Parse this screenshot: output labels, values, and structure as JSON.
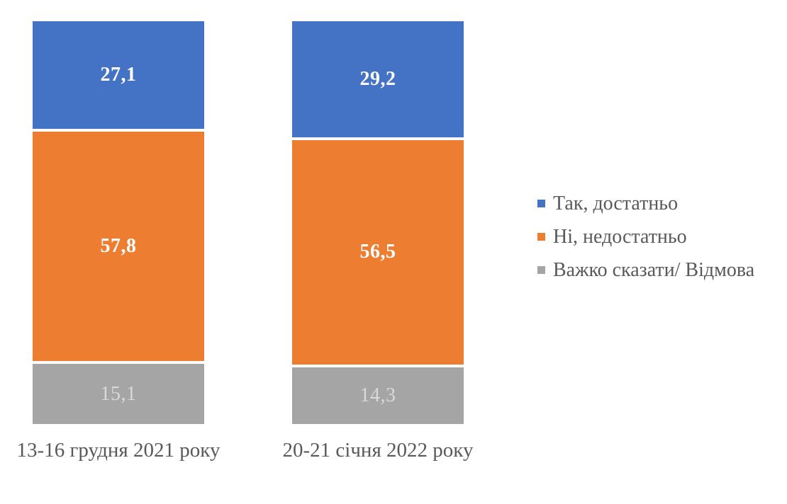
{
  "chart_data": {
    "type": "bar",
    "variant": "stacked-100-percent-column",
    "orientation": "vertical",
    "categories": [
      "13-16 грудня 2021 року",
      "20-21 січня 2022 року"
    ],
    "series": [
      {
        "name": "Так, достатньо",
        "values": [
          27.1,
          29.2
        ],
        "labels": [
          "27,1",
          "29,2"
        ],
        "color": "#4472C4",
        "label_color": "#FFFFFF"
      },
      {
        "name": "Ні, недостатньо",
        "values": [
          57.8,
          56.5
        ],
        "labels": [
          "57,8",
          "56,5"
        ],
        "color": "#ED7D31",
        "label_color": "#FFFFFF"
      },
      {
        "name": "Важко сказати/ Відмова",
        "values": [
          15.1,
          14.3
        ],
        "labels": [
          "15,1",
          "14,3"
        ],
        "color": "#A5A5A5",
        "label_color": "#D9D9D9"
      }
    ],
    "ylim": [
      0,
      100
    ],
    "grid": false,
    "legend_position": "right",
    "axis_text_color": "#595959",
    "background": "#FFFFFF"
  }
}
